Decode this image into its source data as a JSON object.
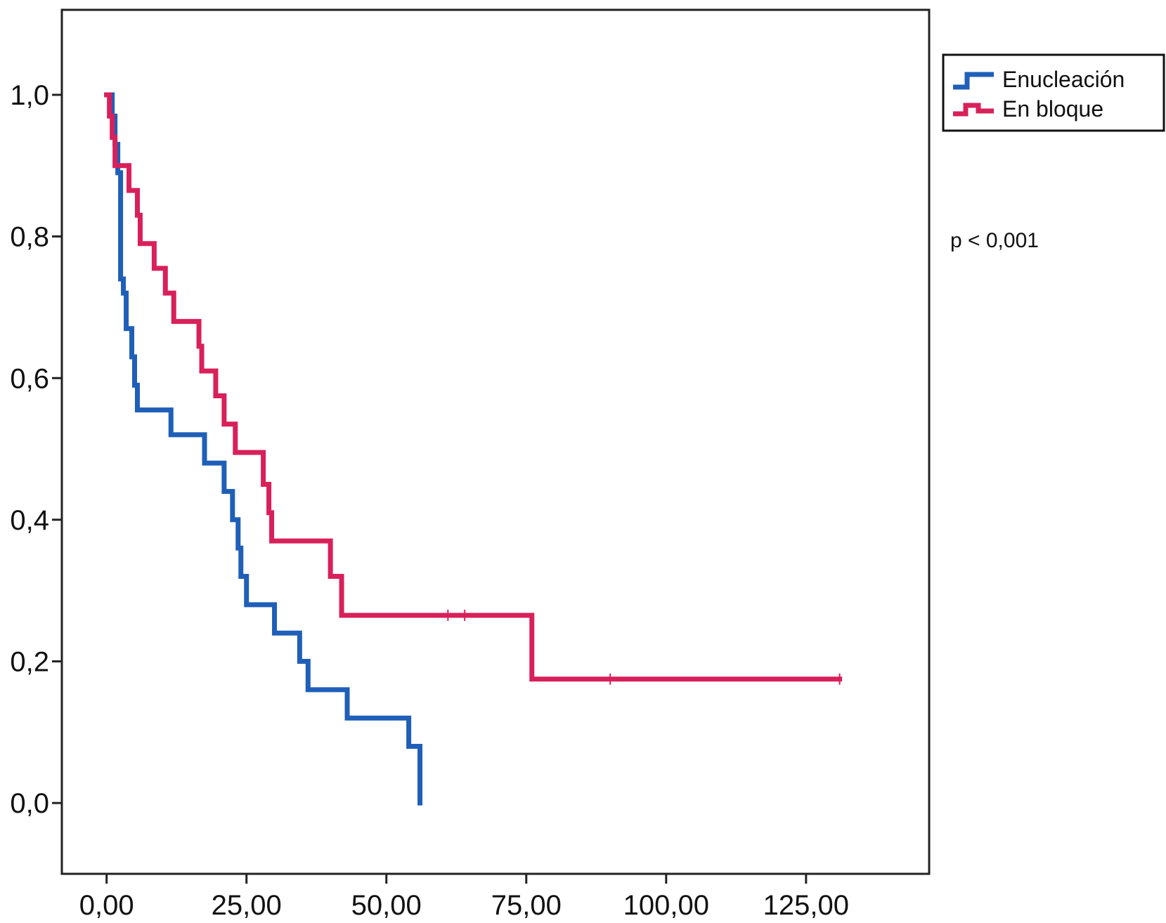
{
  "chart_data": {
    "type": "line",
    "subtype": "kaplan-meier-step",
    "title": "",
    "xlabel": "",
    "ylabel": "",
    "xlim": [
      -8,
      147
    ],
    "ylim": [
      -0.1,
      1.12
    ],
    "x_ticks": [
      0,
      25,
      50,
      75,
      100,
      125
    ],
    "x_tick_labels": [
      "0,00",
      "25,00",
      "50,00",
      "75,00",
      "100,00",
      "125,00"
    ],
    "y_ticks": [
      0,
      0.2,
      0.4,
      0.6,
      0.8,
      1.0
    ],
    "y_tick_labels": [
      "0,0",
      "0,2",
      "0,4",
      "0,6",
      "0,8",
      "1,0"
    ],
    "grid": false,
    "legend_position": "outside-top-right",
    "annotation": "p < 0,001",
    "series": [
      {
        "name": "Enucleación",
        "color": "#1f5fb8",
        "steps": [
          [
            0,
            1.0
          ],
          [
            1,
            0.97
          ],
          [
            1.5,
            0.93
          ],
          [
            2,
            0.89
          ],
          [
            2.5,
            0.74
          ],
          [
            3,
            0.72
          ],
          [
            3.5,
            0.67
          ],
          [
            4.5,
            0.63
          ],
          [
            5,
            0.59
          ],
          [
            5.5,
            0.555
          ],
          [
            11.5,
            0.52
          ],
          [
            17.5,
            0.48
          ],
          [
            21,
            0.44
          ],
          [
            22.5,
            0.4
          ],
          [
            23.5,
            0.36
          ],
          [
            24,
            0.32
          ],
          [
            25,
            0.28
          ],
          [
            30,
            0.24
          ],
          [
            34.5,
            0.2
          ],
          [
            36,
            0.16
          ],
          [
            43,
            0.12
          ],
          [
            54,
            0.08
          ],
          [
            56,
            0.0
          ]
        ],
        "end_x": 56,
        "censored": []
      },
      {
        "name": "En bloque",
        "color": "#d8205a",
        "steps": [
          [
            0,
            1.0
          ],
          [
            0.5,
            0.97
          ],
          [
            1,
            0.94
          ],
          [
            1.5,
            0.9
          ],
          [
            4,
            0.865
          ],
          [
            5.5,
            0.83
          ],
          [
            6,
            0.79
          ],
          [
            8.5,
            0.755
          ],
          [
            10.5,
            0.72
          ],
          [
            12,
            0.68
          ],
          [
            16.5,
            0.645
          ],
          [
            17,
            0.61
          ],
          [
            19.5,
            0.575
          ],
          [
            21,
            0.535
          ],
          [
            23,
            0.495
          ],
          [
            28,
            0.45
          ],
          [
            29,
            0.41
          ],
          [
            29.5,
            0.37
          ],
          [
            40,
            0.32
          ],
          [
            42,
            0.265
          ],
          [
            76,
            0.175
          ]
        ],
        "end_x": 131,
        "censored": [
          [
            61,
            0.265
          ],
          [
            64,
            0.265
          ],
          [
            90,
            0.175
          ],
          [
            131,
            0.175
          ]
        ]
      }
    ]
  }
}
